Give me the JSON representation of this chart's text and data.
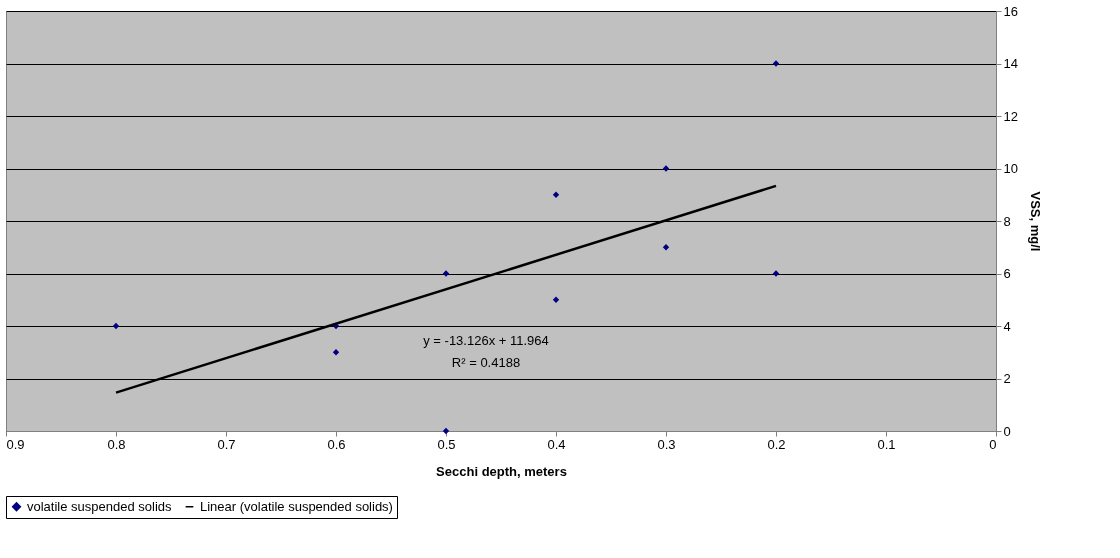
{
  "chart_data": {
    "type": "scatter",
    "xlabel": "Secchi depth, meters",
    "ylabel": "VSS, mg/l",
    "xlim": [
      0.9,
      0
    ],
    "xticks": [
      0.9,
      0.8,
      0.7,
      0.6,
      0.5,
      0.4,
      0.3,
      0.2,
      0.1,
      0
    ],
    "ylim": [
      0,
      16
    ],
    "yticks": [
      0,
      2,
      4,
      6,
      8,
      10,
      12,
      14,
      16
    ],
    "grid": "y",
    "legend": "bottom",
    "series": [
      {
        "name": "volatile suspended solids",
        "marker": "diamond",
        "color": "#000080",
        "x": [
          0.8,
          0.6,
          0.6,
          0.5,
          0.5,
          0.4,
          0.4,
          0.3,
          0.3,
          0.2,
          0.2
        ],
        "values": [
          4,
          4,
          3,
          6,
          0,
          9,
          5,
          10,
          7,
          14,
          6
        ]
      },
      {
        "name": "Linear (volatile suspended solids)",
        "type": "line",
        "marker": "none",
        "color": "#000000",
        "x": [
          0.8,
          0.2
        ],
        "values": [
          1.46,
          9.34
        ]
      }
    ],
    "annotations": [
      "y = -13.126x + 11.964",
      "R² = 0.4188"
    ]
  }
}
